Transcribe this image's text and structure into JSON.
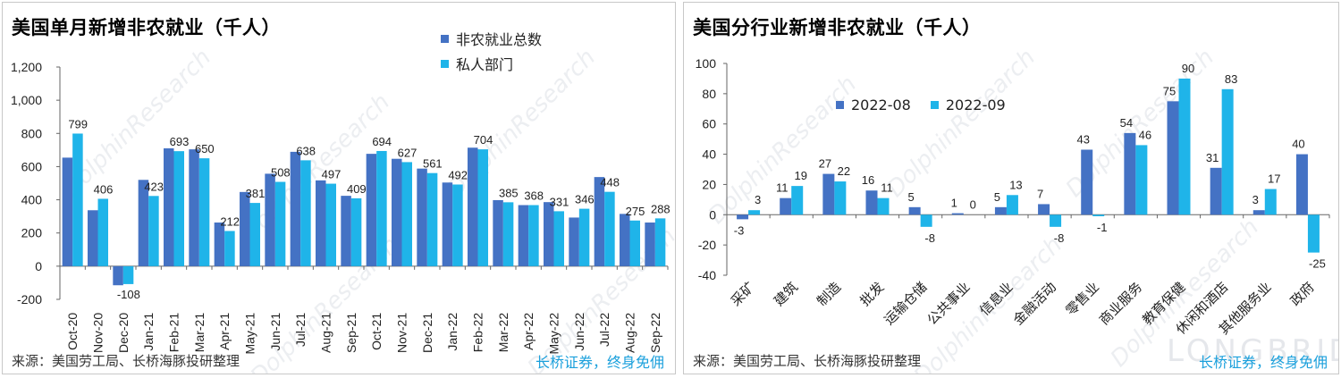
{
  "watermark": {
    "text": "DolphinResearch",
    "sub": "LONGBRIDGE",
    "brand": "LONGBRIDGE"
  },
  "colors": {
    "series1": "#4472c4",
    "series2": "#1fb4e9",
    "slogan": "#1ba0dc"
  },
  "left": {
    "title": "美国单月新增非农就业（千人）",
    "source": "来源：美国劳工局、长桥海豚投研整理",
    "slogan": "长桥证券，终身免佣",
    "chart_data": {
      "type": "bar",
      "title": "美国单月新增非农就业（千人）",
      "categories": [
        "Oct-20",
        "Nov-20",
        "Dec-20",
        "Jan-21",
        "Feb-21",
        "Mar-21",
        "Apr-21",
        "May-21",
        "Jun-21",
        "Jul-21",
        "Aug-21",
        "Sep-21",
        "Oct-21",
        "Nov-21",
        "Dec-21",
        "Jan-22",
        "Feb-22",
        "Mar-22",
        "Apr-22",
        "May-22",
        "Jun-22",
        "Jul-22",
        "Aug-22",
        "Sep-22"
      ],
      "series": [
        {
          "name": "非农就业总数",
          "values": [
            654,
            337,
            -115,
            520,
            710,
            704,
            263,
            447,
            557,
            689,
            517,
            424,
            677,
            647,
            588,
            504,
            714,
            398,
            368,
            386,
            293,
            537,
            315,
            263
          ]
        },
        {
          "name": "私人部门",
          "values": [
            799,
            406,
            -108,
            423,
            693,
            650,
            212,
            381,
            508,
            638,
            497,
            409,
            694,
            627,
            561,
            492,
            704,
            385,
            368,
            331,
            346,
            448,
            275,
            288
          ]
        }
      ],
      "data_labels_series": "私人部门",
      "ylim": [
        -200,
        1200
      ],
      "yticks": [
        -200,
        0,
        200,
        400,
        600,
        800,
        1000,
        1200
      ],
      "ytick_labels": [
        "-200",
        "0",
        "200",
        "400",
        "600",
        "800",
        "1,000",
        "1,200"
      ],
      "legend": "top-right",
      "grid": false
    }
  },
  "right": {
    "title": "美国分行业新增非农就业（千人）",
    "source": "来源：美国劳工局、长桥海豚投研整理",
    "slogan": "长桥证券，终身免佣",
    "chart_data": {
      "type": "bar",
      "title": "美国分行业新增非农就业（千人）",
      "categories": [
        "采矿",
        "建筑",
        "制造",
        "批发",
        "运输仓储",
        "公共事业",
        "信息业",
        "金融活动",
        "零售业",
        "商业服务",
        "教育保健",
        "休闲和酒店",
        "其他服务业",
        "政府"
      ],
      "series": [
        {
          "name": "2022-08",
          "values": [
            -3,
            11,
            27,
            16,
            5,
            1,
            5,
            7,
            43,
            54,
            75,
            31,
            3,
            40
          ]
        },
        {
          "name": "2022-09",
          "values": [
            3,
            19,
            22,
            11,
            -8,
            0,
            13,
            -8,
            -1,
            46,
            90,
            83,
            17,
            -25
          ]
        }
      ],
      "ylim": [
        -40,
        100
      ],
      "yticks": [
        -40,
        -20,
        0,
        20,
        40,
        60,
        80,
        100
      ],
      "legend": "top-left",
      "grid": false
    }
  }
}
